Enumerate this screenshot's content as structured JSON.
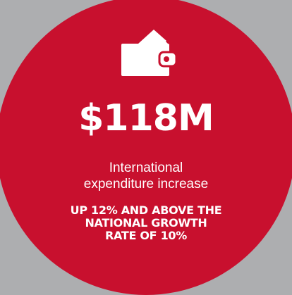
{
  "colors": {
    "background": "#adaeb0",
    "circle": "#c8102e",
    "text": "#ffffff"
  },
  "icon": "wallet-icon",
  "headline_value": "$118M",
  "label_line1": "International",
  "label_line2": "expenditure increase",
  "note_line1": "UP 12% AND ABOVE THE",
  "note_line2": "NATIONAL GROWTH",
  "note_line3": "RATE OF 10%"
}
